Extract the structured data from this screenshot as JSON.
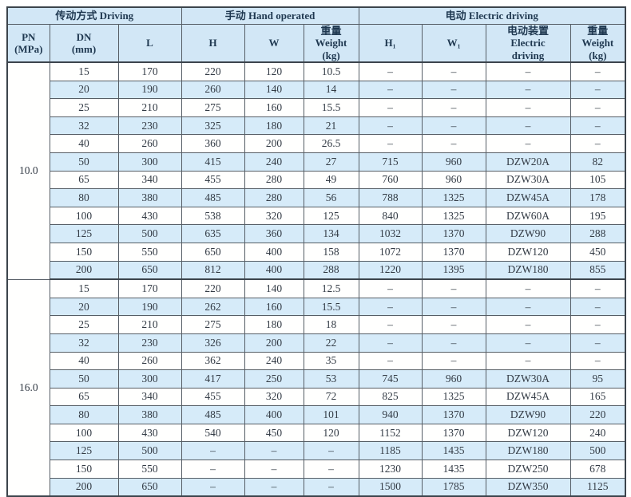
{
  "table": {
    "groups": [
      {
        "label": "传动方式 Driving",
        "colspan": 3
      },
      {
        "label": "手动 Hand operated",
        "colspan": 3
      },
      {
        "label": "电动 Electric driving",
        "colspan": 4
      }
    ],
    "columns": [
      {
        "id": "pn",
        "label": "PN\n(MPa)"
      },
      {
        "id": "dn",
        "label": "DN\n(mm)"
      },
      {
        "id": "l",
        "label": "L"
      },
      {
        "id": "h",
        "label": "H"
      },
      {
        "id": "w",
        "label": "W"
      },
      {
        "id": "weight-hand",
        "label": "重量\nWeight\n(kg)"
      },
      {
        "id": "h1",
        "label": "H₁"
      },
      {
        "id": "w1",
        "label": "W₁"
      },
      {
        "id": "electric-device",
        "label": "电动装置\nElectric\ndriving"
      },
      {
        "id": "weight-electric",
        "label": "重量\nWeight\n(kg)"
      }
    ],
    "sections": [
      {
        "pn": "10.0",
        "rows": [
          [
            "15",
            "170",
            "220",
            "120",
            "10.5",
            "–",
            "–",
            "–",
            "–"
          ],
          [
            "20",
            "190",
            "260",
            "140",
            "14",
            "–",
            "–",
            "–",
            "–"
          ],
          [
            "25",
            "210",
            "275",
            "160",
            "15.5",
            "–",
            "–",
            "–",
            "–"
          ],
          [
            "32",
            "230",
            "325",
            "180",
            "21",
            "–",
            "–",
            "–",
            "–"
          ],
          [
            "40",
            "260",
            "360",
            "200",
            "26.5",
            "–",
            "–",
            "–",
            "–"
          ],
          [
            "50",
            "300",
            "415",
            "240",
            "27",
            "715",
            "960",
            "DZW20A",
            "82"
          ],
          [
            "65",
            "340",
            "455",
            "280",
            "49",
            "760",
            "960",
            "DZW30A",
            "105"
          ],
          [
            "80",
            "380",
            "485",
            "280",
            "56",
            "788",
            "1325",
            "DZW45A",
            "178"
          ],
          [
            "100",
            "430",
            "538",
            "320",
            "125",
            "840",
            "1325",
            "DZW60A",
            "195"
          ],
          [
            "125",
            "500",
            "635",
            "360",
            "134",
            "1032",
            "1370",
            "DZW90",
            "288"
          ],
          [
            "150",
            "550",
            "650",
            "400",
            "158",
            "1072",
            "1370",
            "DZW120",
            "450"
          ],
          [
            "200",
            "650",
            "812",
            "400",
            "288",
            "1220",
            "1395",
            "DZW180",
            "855"
          ]
        ]
      },
      {
        "pn": "16.0",
        "rows": [
          [
            "15",
            "170",
            "220",
            "140",
            "12.5",
            "–",
            "–",
            "–",
            "–"
          ],
          [
            "20",
            "190",
            "262",
            "160",
            "15.5",
            "–",
            "–",
            "–",
            "–"
          ],
          [
            "25",
            "210",
            "275",
            "180",
            "18",
            "–",
            "–",
            "–",
            "–"
          ],
          [
            "32",
            "230",
            "326",
            "200",
            "22",
            "–",
            "–",
            "–",
            "–"
          ],
          [
            "40",
            "260",
            "362",
            "240",
            "35",
            "–",
            "–",
            "–",
            "–"
          ],
          [
            "50",
            "300",
            "417",
            "250",
            "53",
            "745",
            "960",
            "DZW30A",
            "95"
          ],
          [
            "65",
            "340",
            "455",
            "320",
            "72",
            "825",
            "1325",
            "DZW45A",
            "165"
          ],
          [
            "80",
            "380",
            "485",
            "400",
            "101",
            "940",
            "1370",
            "DZW90",
            "220"
          ],
          [
            "100",
            "430",
            "540",
            "450",
            "120",
            "1152",
            "1370",
            "DZW120",
            "240"
          ],
          [
            "125",
            "500",
            "–",
            "–",
            "–",
            "1185",
            "1435",
            "DZW180",
            "500"
          ],
          [
            "150",
            "550",
            "–",
            "–",
            "–",
            "1230",
            "1435",
            "DZW250",
            "678"
          ],
          [
            "200",
            "650",
            "–",
            "–",
            "–",
            "1500",
            "1785",
            "DZW350",
            "1125"
          ]
        ]
      }
    ],
    "colors": {
      "header_bg": "#d2e7f6",
      "alt_row_bg": "#d6ebf9",
      "row_bg": "#fffffe",
      "border": "#565e66",
      "outer_border": "#3c444c",
      "text": "#333b45",
      "header_text": "#1f3850"
    }
  }
}
